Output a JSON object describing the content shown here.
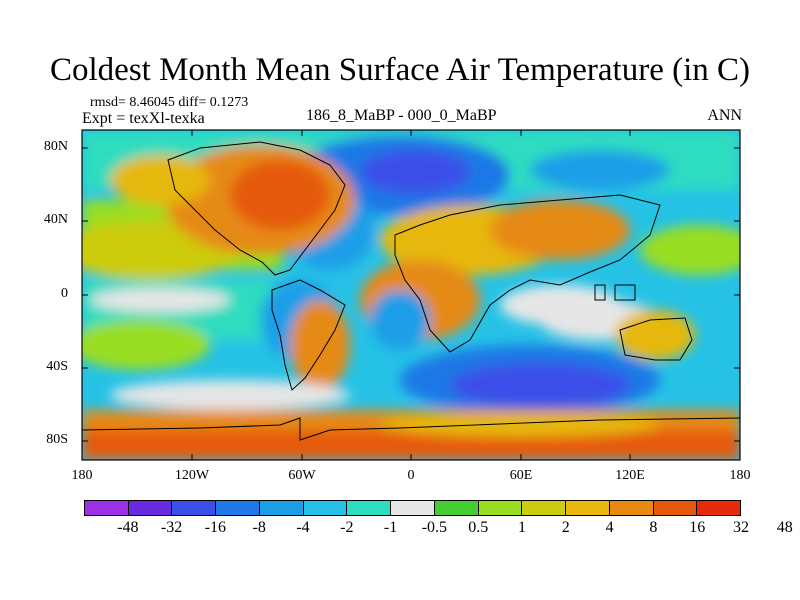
{
  "title": "Coldest Month Mean Surface Air Temperature (in C)",
  "stats": "rmsd= 8.46045 diff= 0.1273",
  "experiment": "Expt = texXl-texka",
  "subtitle": "186_8_MaBP - 000_0_MaBP",
  "season": "ANN",
  "lat_labels": [
    "80N",
    "40N",
    "0",
    "40S",
    "80S"
  ],
  "lon_labels": [
    "180",
    "120W",
    "60W",
    "0",
    "60E",
    "120E",
    "180"
  ],
  "colorbar": {
    "colors": [
      "#9b30e6",
      "#6a2ae0",
      "#3a4fe8",
      "#1f78e6",
      "#1f9ee8",
      "#25c2e6",
      "#2edcc0",
      "#e6e6e6",
      "#44cc33",
      "#99dd22",
      "#cccc11",
      "#e6b810",
      "#e68a12",
      "#e65a10",
      "#e62a0a"
    ],
    "labels": [
      "-48",
      "-32",
      "-16",
      "-8",
      "-4",
      "-2",
      "-1",
      "-0.5",
      "0.5",
      "1",
      "2",
      "4",
      "8",
      "16",
      "32",
      "48"
    ]
  }
}
